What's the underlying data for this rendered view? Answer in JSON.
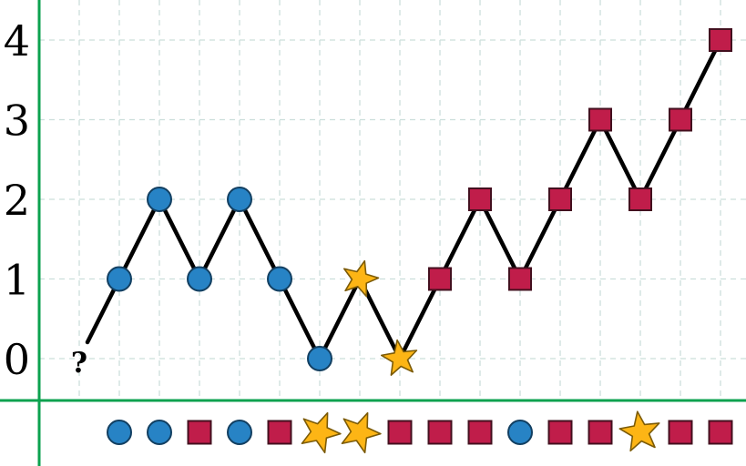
{
  "chart_data": {
    "type": "line",
    "title": "",
    "grid": true,
    "y_axis": {
      "ticks": [
        "0",
        "1",
        "2",
        "3",
        "4"
      ],
      "range": [
        0,
        4
      ]
    },
    "x_axis": {
      "tick_labels": [],
      "steps": 16
    },
    "start_label": "?",
    "points": [
      {
        "step": 1,
        "value": 1,
        "marker": "circle"
      },
      {
        "step": 2,
        "value": 2,
        "marker": "circle"
      },
      {
        "step": 3,
        "value": 1,
        "marker": "circle"
      },
      {
        "step": 4,
        "value": 2,
        "marker": "circle"
      },
      {
        "step": 5,
        "value": 1,
        "marker": "circle"
      },
      {
        "step": 6,
        "value": 0,
        "marker": "circle"
      },
      {
        "step": 7,
        "value": 1,
        "marker": "star",
        "rot": 15
      },
      {
        "step": 8,
        "value": 0,
        "marker": "star",
        "rot": -8
      },
      {
        "step": 9,
        "value": 1,
        "marker": "square"
      },
      {
        "step": 10,
        "value": 2,
        "marker": "square"
      },
      {
        "step": 11,
        "value": 1,
        "marker": "square"
      },
      {
        "step": 12,
        "value": 2,
        "marker": "square"
      },
      {
        "step": 13,
        "value": 3,
        "marker": "square"
      },
      {
        "step": 14,
        "value": 2,
        "marker": "square"
      },
      {
        "step": 15,
        "value": 3,
        "marker": "square"
      },
      {
        "step": 16,
        "value": 4,
        "marker": "square"
      }
    ],
    "sequence_row": [
      {
        "shape": "circle"
      },
      {
        "shape": "circle"
      },
      {
        "shape": "square"
      },
      {
        "shape": "circle"
      },
      {
        "shape": "square"
      },
      {
        "shape": "star",
        "rot": 22
      },
      {
        "shape": "star",
        "rot": 22
      },
      {
        "shape": "square"
      },
      {
        "shape": "square"
      },
      {
        "shape": "square"
      },
      {
        "shape": "circle"
      },
      {
        "shape": "square"
      },
      {
        "shape": "square"
      },
      {
        "shape": "star",
        "rot": -8
      },
      {
        "shape": "square"
      },
      {
        "shape": "square"
      }
    ],
    "colors": {
      "background": "#ffffff",
      "axis_green": "#0ca24f",
      "gridline": "#ccdfdb",
      "line": "#000000",
      "circle_fill": "#2783c5",
      "circle_stroke": "#123f61",
      "square_fill": "#c01d4a",
      "square_stroke": "#43101f",
      "star_fill": "#fdb515",
      "star_stroke": "#7c5b07",
      "label": "#000000"
    }
  }
}
